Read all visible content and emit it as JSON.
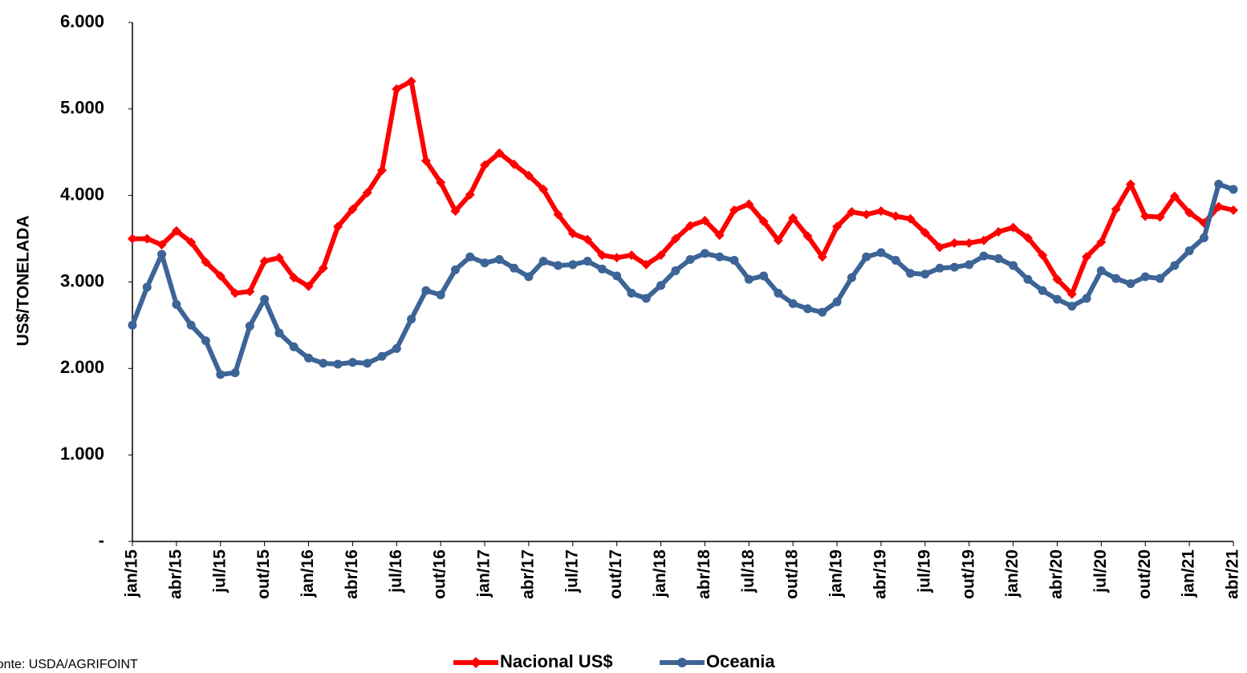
{
  "chart_data": {
    "type": "line",
    "y_label": "US$/TONELADA",
    "source": "Fonte: USDA/AGRIFOINT",
    "categories": [
      "jan/15",
      null,
      null,
      "abr/15",
      null,
      null,
      "jul/15",
      null,
      null,
      "out/15",
      null,
      null,
      "jan/16",
      null,
      null,
      "abr/16",
      null,
      null,
      "jul/16",
      null,
      null,
      "out/16",
      null,
      null,
      "jan/17",
      null,
      null,
      "abr/17",
      null,
      null,
      "jul/17",
      null,
      null,
      "out/17",
      null,
      null,
      "jan/18",
      null,
      null,
      "abr/18",
      null,
      null,
      "jul/18",
      null,
      null,
      "out/18",
      null,
      null,
      "jan/19",
      null,
      null,
      "abr/19",
      null,
      null,
      "jul/19",
      null,
      null,
      "out/19",
      null,
      null,
      "jan/20",
      null,
      null,
      "abr/20",
      null,
      null,
      "jul/20",
      null,
      null,
      "out/20",
      null,
      null,
      "jan/21",
      null,
      null,
      "abr/21"
    ],
    "series": [
      {
        "name": "Nacional US$",
        "color": "#ff0000",
        "marker": "diamond",
        "values": [
          3500,
          3500,
          3430,
          3590,
          3460,
          3230,
          3070,
          2870,
          2890,
          3240,
          3280,
          3050,
          2950,
          3160,
          3640,
          3840,
          4030,
          4290,
          5230,
          5320,
          4400,
          4150,
          3820,
          4010,
          4350,
          4490,
          4360,
          4230,
          4070,
          3780,
          3560,
          3490,
          3310,
          3280,
          3310,
          3200,
          3310,
          3500,
          3650,
          3710,
          3540,
          3830,
          3900,
          3700,
          3480,
          3740,
          3530,
          3290,
          3640,
          3810,
          3780,
          3820,
          3760,
          3730,
          3570,
          3400,
          3450,
          3450,
          3480,
          3580,
          3630,
          3510,
          3310,
          3030,
          2860,
          3290,
          3460,
          3840,
          4130,
          3760,
          3750,
          3990,
          3800,
          3680,
          3870,
          3830
        ]
      },
      {
        "name": "Oceania",
        "color": "#3c6496",
        "marker": "circle",
        "values": [
          2500,
          2940,
          3320,
          2740,
          2500,
          2320,
          1930,
          1950,
          2490,
          2800,
          2410,
          2250,
          2120,
          2060,
          2050,
          2070,
          2060,
          2140,
          2230,
          2570,
          2900,
          2850,
          3140,
          3290,
          3220,
          3260,
          3160,
          3060,
          3240,
          3190,
          3200,
          3240,
          3150,
          3070,
          2870,
          2810,
          2960,
          3130,
          3260,
          3330,
          3290,
          3250,
          3030,
          3070,
          2870,
          2750,
          2690,
          2650,
          2770,
          3050,
          3290,
          3340,
          3250,
          3100,
          3090,
          3160,
          3170,
          3200,
          3300,
          3270,
          3190,
          3030,
          2900,
          2800,
          2720,
          2810,
          3130,
          3040,
          2980,
          3060,
          3040,
          3190,
          3360,
          3510,
          4130,
          4070
        ]
      }
    ],
    "ylim": [
      0,
      6000
    ],
    "yticks": [
      {
        "value": 0,
        "label": "-"
      },
      {
        "value": 1000,
        "label": "1.000"
      },
      {
        "value": 2000,
        "label": "2.000"
      },
      {
        "value": 3000,
        "label": "3.000"
      },
      {
        "value": 4000,
        "label": "4.000"
      },
      {
        "value": 5000,
        "label": "5.000"
      },
      {
        "value": 6000,
        "label": "6.000"
      }
    ],
    "grid": false,
    "legend": "bottom"
  }
}
